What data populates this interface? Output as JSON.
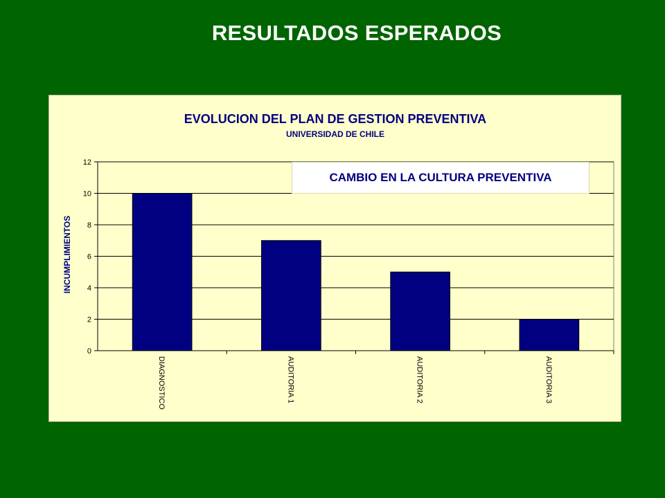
{
  "slide": {
    "title": "RESULTADOS ESPERADOS"
  },
  "colors": {
    "background": "#006400",
    "plot_area": "#FFFFCC",
    "bar": "#000080",
    "title_text": "#000080"
  },
  "chart_data": {
    "type": "bar",
    "title": "EVOLUCION DEL PLAN DE GESTION PREVENTIVA",
    "subtitle": "UNIVERSIDAD DE CHILE",
    "xlabel": "",
    "ylabel": "INCUMPLIMIENTOS",
    "categories": [
      "DIAGNOSTICO",
      "AUDITORIA  1",
      "AUDITORIA  2",
      "AUDITORIA  3"
    ],
    "values": [
      10,
      7,
      5,
      2
    ],
    "ylim": [
      0,
      12
    ],
    "yticks": [
      "0",
      "2",
      "4",
      "6",
      "8",
      "10",
      "12"
    ],
    "grid": true,
    "annotation": "CAMBIO EN LA CULTURA PREVENTIVA"
  }
}
